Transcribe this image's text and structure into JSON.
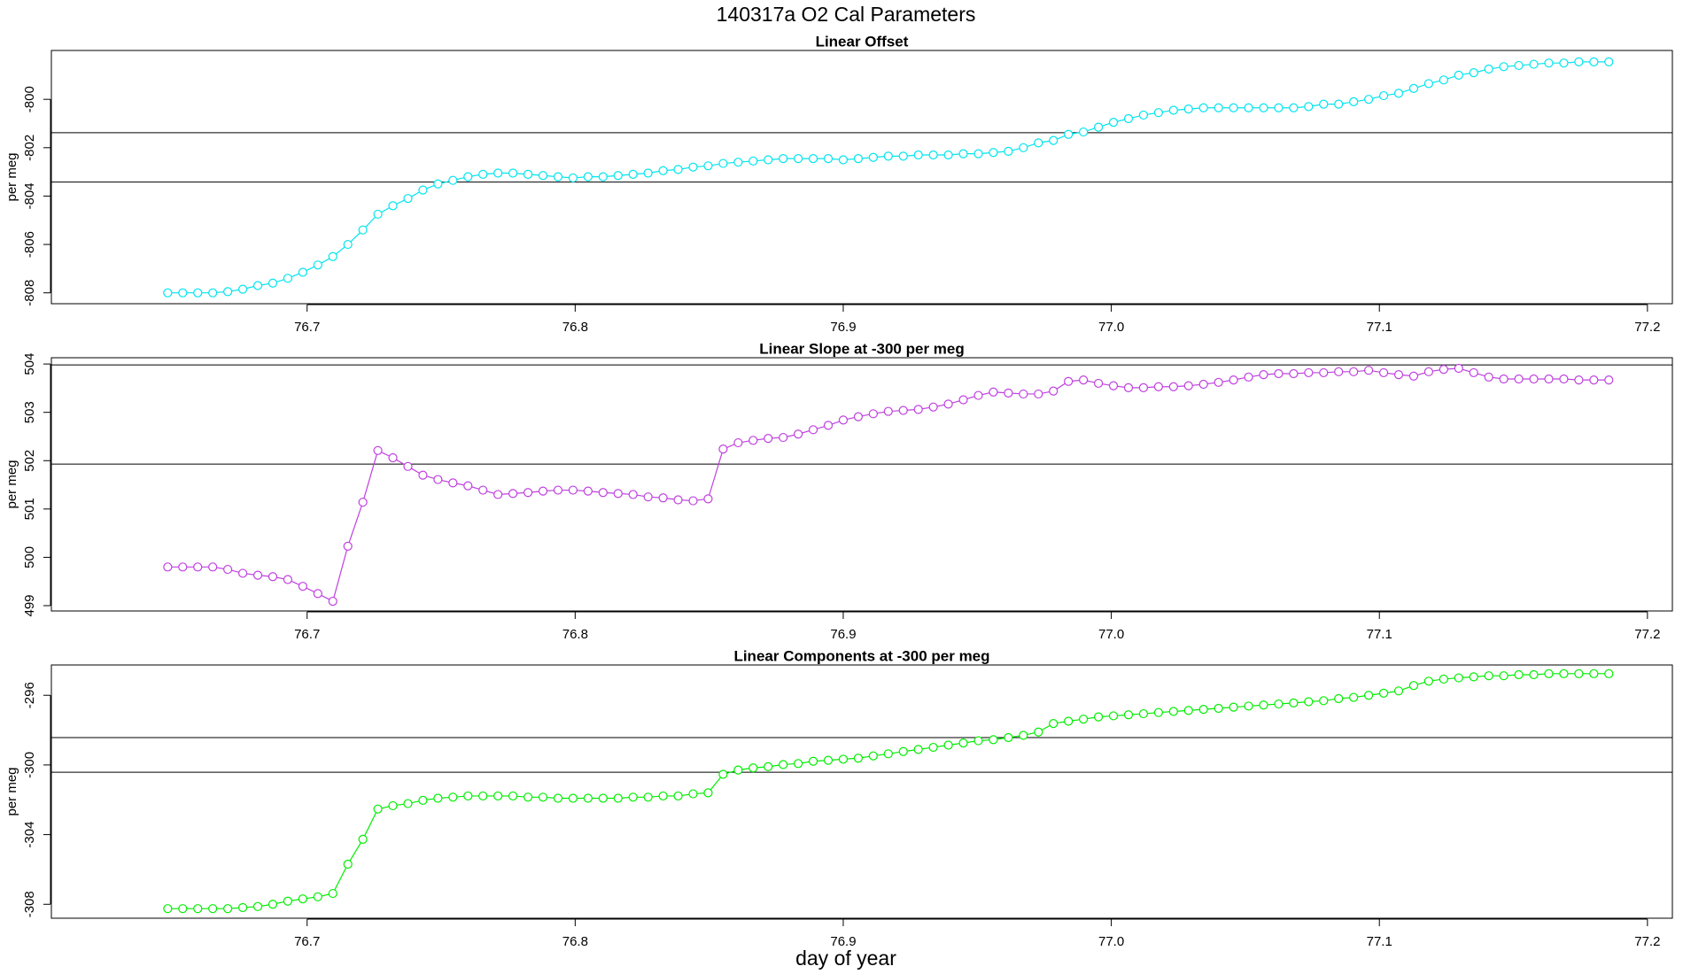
{
  "title": "140317a   O2 Cal Parameters",
  "xlabel": "day of year",
  "chart_data": [
    {
      "type": "line",
      "title": "Linear Offset",
      "ylabel": "per meg",
      "color": "#00e5ee",
      "xlim": [
        76.6046,
        77.2093
      ],
      "xticks": [
        76.7,
        76.8,
        76.9,
        {
          "value": 77,
          "label": "77.0"
        },
        77.1,
        77.2
      ],
      "ylim": [
        -808.45,
        -797.98
      ],
      "yticks": [
        -808,
        -806,
        -804,
        -802,
        -800
      ],
      "hlines": [
        -801.38,
        -803.42
      ],
      "x": [
        76.648,
        76.6536,
        76.6592,
        76.6648,
        76.6704,
        76.676,
        76.6816,
        76.6872,
        76.6928,
        76.6984,
        76.704,
        76.7096,
        76.7152,
        76.7208,
        76.7264,
        76.732,
        76.7376,
        76.7432,
        76.7488,
        76.7544,
        76.76,
        76.7656,
        76.7712,
        76.7768,
        76.7824,
        76.788,
        76.7936,
        76.7992,
        76.8048,
        76.8104,
        76.816,
        76.8216,
        76.8272,
        76.8328,
        76.8384,
        76.844,
        76.8496,
        76.8552,
        76.8608,
        76.8664,
        76.872,
        76.8776,
        76.8832,
        76.8888,
        76.8944,
        76.9,
        76.9056,
        76.9112,
        76.9168,
        76.9224,
        76.928,
        76.9336,
        76.9392,
        76.9448,
        76.9504,
        76.956,
        76.9616,
        76.9672,
        76.9728,
        76.9784,
        76.984,
        76.9896,
        76.9952,
        77.0008,
        77.0064,
        77.012,
        77.0176,
        77.0232,
        77.0288,
        77.0344,
        77.04,
        77.0456,
        77.0512,
        77.0568,
        77.0624,
        77.068,
        77.0736,
        77.0792,
        77.0848,
        77.0904,
        77.096,
        77.1016,
        77.1072,
        77.1128,
        77.1184,
        77.124,
        77.1296,
        77.1352,
        77.1408,
        77.1464,
        77.152,
        77.1576,
        77.1632,
        77.1688,
        77.1744,
        77.18,
        77.1856
      ],
      "values": [
        -808.0,
        -808.0,
        -808.0,
        -808.0,
        -807.95,
        -807.85,
        -807.7,
        -807.6,
        -807.4,
        -807.15,
        -806.85,
        -806.5,
        -806.0,
        -805.4,
        -804.75,
        -804.4,
        -804.1,
        -803.75,
        -803.5,
        -803.35,
        -803.2,
        -803.1,
        -803.05,
        -803.05,
        -803.1,
        -803.15,
        -803.2,
        -803.25,
        -803.2,
        -803.2,
        -803.15,
        -803.1,
        -803.05,
        -802.95,
        -802.9,
        -802.8,
        -802.75,
        -802.65,
        -802.6,
        -802.55,
        -802.5,
        -802.45,
        -802.45,
        -802.45,
        -802.45,
        -802.5,
        -802.45,
        -802.4,
        -802.35,
        -802.35,
        -802.3,
        -802.3,
        -802.3,
        -802.25,
        -802.25,
        -802.2,
        -802.15,
        -802.0,
        -801.8,
        -801.7,
        -801.45,
        -801.35,
        -801.15,
        -800.95,
        -800.8,
        -800.65,
        -800.55,
        -800.45,
        -800.4,
        -800.35,
        -800.35,
        -800.35,
        -800.35,
        -800.35,
        -800.35,
        -800.35,
        -800.3,
        -800.2,
        -800.2,
        -800.1,
        -800.0,
        -799.85,
        -799.75,
        -799.55,
        -799.35,
        -799.2,
        -799.0,
        -798.9,
        -798.75,
        -798.65,
        -798.6,
        -798.55,
        -798.5,
        -798.5,
        -798.45,
        -798.45,
        -798.45
      ]
    },
    {
      "type": "line",
      "title": "Linear Slope at -300 per meg",
      "ylabel": "per meg",
      "color": "#c040e0",
      "xlim": [
        76.6046,
        77.2093
      ],
      "xticks": [
        76.7,
        76.8,
        76.9,
        {
          "value": 77,
          "label": "77.0"
        },
        77.1,
        77.2
      ],
      "ylim": [
        498.89,
        504.13
      ],
      "yticks": [
        499,
        500,
        501,
        502,
        503,
        504
      ],
      "hlines": [
        503.98,
        501.93
      ],
      "x": [
        76.648,
        76.6536,
        76.6592,
        76.6648,
        76.6704,
        76.676,
        76.6816,
        76.6872,
        76.6928,
        76.6984,
        76.704,
        76.7096,
        76.7152,
        76.7208,
        76.7264,
        76.732,
        76.7376,
        76.7432,
        76.7488,
        76.7544,
        76.76,
        76.7656,
        76.7712,
        76.7768,
        76.7824,
        76.788,
        76.7936,
        76.7992,
        76.8048,
        76.8104,
        76.816,
        76.8216,
        76.8272,
        76.8328,
        76.8384,
        76.844,
        76.8496,
        76.8552,
        76.8608,
        76.8664,
        76.872,
        76.8776,
        76.8832,
        76.8888,
        76.8944,
        76.9,
        76.9056,
        76.9112,
        76.9168,
        76.9224,
        76.928,
        76.9336,
        76.9392,
        76.9448,
        76.9504,
        76.956,
        76.9616,
        76.9672,
        76.9728,
        76.9784,
        76.984,
        76.9896,
        76.9952,
        77.0008,
        77.0064,
        77.012,
        77.0176,
        77.0232,
        77.0288,
        77.0344,
        77.04,
        77.0456,
        77.0512,
        77.0568,
        77.0624,
        77.068,
        77.0736,
        77.0792,
        77.0848,
        77.0904,
        77.096,
        77.1016,
        77.1072,
        77.1128,
        77.1184,
        77.124,
        77.1296,
        77.1352,
        77.1408,
        77.1464,
        77.152,
        77.1576,
        77.1632,
        77.1688,
        77.1744,
        77.18,
        77.1856
      ],
      "values": [
        499.8,
        499.8,
        499.8,
        499.8,
        499.75,
        499.67,
        499.63,
        499.6,
        499.54,
        499.4,
        499.25,
        499.09,
        500.23,
        501.14,
        502.21,
        502.06,
        501.88,
        501.7,
        501.61,
        501.54,
        501.48,
        501.39,
        501.3,
        501.32,
        501.34,
        501.37,
        501.39,
        501.39,
        501.37,
        501.34,
        501.32,
        501.3,
        501.25,
        501.23,
        501.19,
        501.17,
        501.21,
        502.24,
        502.37,
        502.42,
        502.46,
        502.48,
        502.55,
        502.64,
        502.73,
        502.84,
        502.91,
        502.97,
        503.02,
        503.04,
        503.06,
        503.11,
        503.17,
        503.26,
        503.35,
        503.42,
        503.4,
        503.38,
        503.38,
        503.44,
        503.64,
        503.67,
        503.6,
        503.55,
        503.51,
        503.51,
        503.53,
        503.53,
        503.55,
        503.58,
        503.62,
        503.67,
        503.73,
        503.78,
        503.8,
        503.8,
        503.82,
        503.82,
        503.84,
        503.84,
        503.87,
        503.82,
        503.78,
        503.75,
        503.84,
        503.89,
        503.91,
        503.82,
        503.73,
        503.69,
        503.69,
        503.69,
        503.69,
        503.69,
        503.67,
        503.67,
        503.67
      ]
    },
    {
      "type": "line",
      "title": "Linear Components at -300 per meg",
      "ylabel": "per meg",
      "color": "#00ee00",
      "xlim": [
        76.6046,
        77.2093
      ],
      "xticks": [
        76.7,
        76.8,
        76.9,
        {
          "value": 77,
          "label": "77.0"
        },
        77.1,
        77.2
      ],
      "ylim": [
        -308.8,
        -294.26
      ],
      "yticks": [
        -308,
        -304,
        -300,
        -296
      ],
      "hlines": [
        -298.43,
        -300.42
      ],
      "x": [
        76.648,
        76.6536,
        76.6592,
        76.6648,
        76.6704,
        76.676,
        76.6816,
        76.6872,
        76.6928,
        76.6984,
        76.704,
        76.7096,
        76.7152,
        76.7208,
        76.7264,
        76.732,
        76.7376,
        76.7432,
        76.7488,
        76.7544,
        76.76,
        76.7656,
        76.7712,
        76.7768,
        76.7824,
        76.788,
        76.7936,
        76.7992,
        76.8048,
        76.8104,
        76.816,
        76.8216,
        76.8272,
        76.8328,
        76.8384,
        76.844,
        76.8496,
        76.8552,
        76.8608,
        76.8664,
        76.872,
        76.8776,
        76.8832,
        76.8888,
        76.8944,
        76.9,
        76.9056,
        76.9112,
        76.9168,
        76.9224,
        76.928,
        76.9336,
        76.9392,
        76.9448,
        76.9504,
        76.956,
        76.9616,
        76.9672,
        76.9728,
        76.9784,
        76.984,
        76.9896,
        76.9952,
        77.0008,
        77.0064,
        77.012,
        77.0176,
        77.0232,
        77.0288,
        77.0344,
        77.04,
        77.0456,
        77.0512,
        77.0568,
        77.0624,
        77.068,
        77.0736,
        77.0792,
        77.0848,
        77.0904,
        77.096,
        77.1016,
        77.1072,
        77.1128,
        77.1184,
        77.124,
        77.1296,
        77.1352,
        77.1408,
        77.1464,
        77.152,
        77.1576,
        77.1632,
        77.1688,
        77.1744,
        77.18,
        77.1856
      ],
      "values": [
        -308.25,
        -308.25,
        -308.25,
        -308.25,
        -308.25,
        -308.19,
        -308.13,
        -308.0,
        -307.82,
        -307.69,
        -307.57,
        -307.38,
        -305.7,
        -304.27,
        -302.53,
        -302.34,
        -302.22,
        -302.03,
        -301.91,
        -301.85,
        -301.78,
        -301.78,
        -301.78,
        -301.78,
        -301.85,
        -301.85,
        -301.91,
        -301.91,
        -301.91,
        -301.91,
        -301.91,
        -301.85,
        -301.85,
        -301.78,
        -301.78,
        -301.66,
        -301.6,
        -300.54,
        -300.29,
        -300.17,
        -300.1,
        -299.98,
        -299.92,
        -299.79,
        -299.73,
        -299.67,
        -299.61,
        -299.48,
        -299.36,
        -299.23,
        -299.11,
        -298.99,
        -298.86,
        -298.74,
        -298.61,
        -298.55,
        -298.43,
        -298.3,
        -298.11,
        -297.62,
        -297.49,
        -297.37,
        -297.24,
        -297.18,
        -297.12,
        -297.06,
        -296.99,
        -296.93,
        -296.87,
        -296.81,
        -296.75,
        -296.68,
        -296.62,
        -296.56,
        -296.5,
        -296.44,
        -296.37,
        -296.31,
        -296.19,
        -296.12,
        -296.0,
        -295.88,
        -295.75,
        -295.44,
        -295.19,
        -295.07,
        -295.0,
        -294.94,
        -294.88,
        -294.88,
        -294.82,
        -294.82,
        -294.76,
        -294.76,
        -294.76,
        -294.76,
        -294.76
      ]
    }
  ]
}
